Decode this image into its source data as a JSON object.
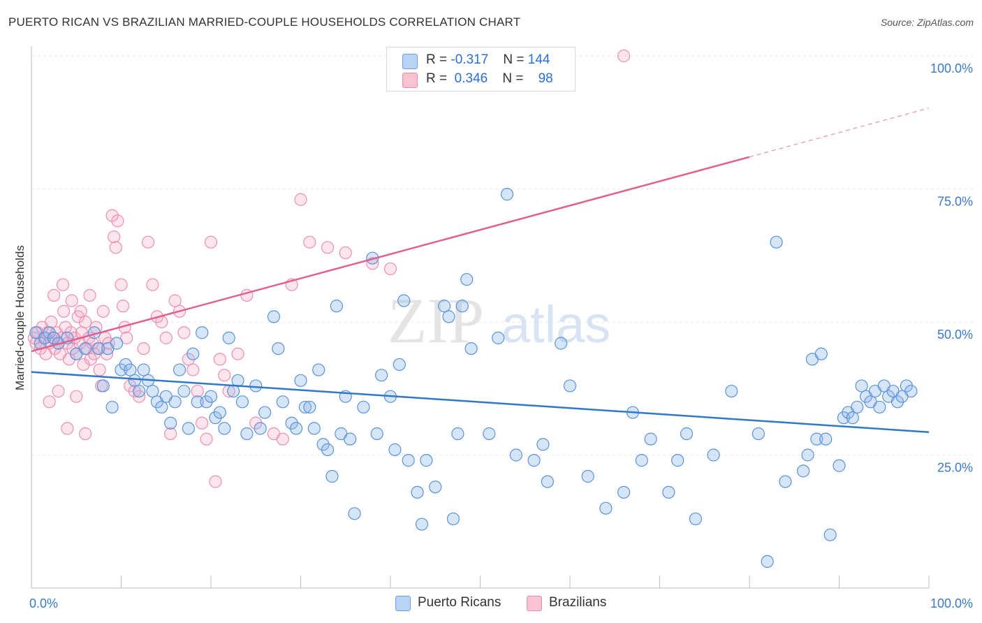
{
  "header": {
    "title": "PUERTO RICAN VS BRAZILIAN MARRIED-COUPLE HOUSEHOLDS CORRELATION CHART",
    "source": "Source: ZipAtlas.com"
  },
  "watermark": {
    "zip": "ZIP",
    "atlas": "atlas"
  },
  "legend": {
    "r_label": "R =",
    "n_label": "N =",
    "series": [
      {
        "name": "Puerto Ricans",
        "r": "-0.317",
        "n": "144",
        "fill": "#b9d3f4",
        "stroke": "#6a9ee0"
      },
      {
        "name": "Brazilians",
        "r": "0.346",
        "n": "98",
        "fill": "#f9c3d4",
        "stroke": "#e88aa8"
      }
    ]
  },
  "colors": {
    "blue_point_fill": "rgba(140,180,235,0.35)",
    "blue_point_stroke": "#5b93da",
    "pink_point_fill": "rgba(245,170,195,0.30)",
    "pink_point_stroke": "#ee8fb0",
    "blue_line": "#2f78cc",
    "pink_line": "#e0608e",
    "tick_label": "#3a78c9",
    "grid": "#e6e6e6"
  },
  "chart_data": {
    "type": "scatter",
    "title": "PUERTO RICAN VS BRAZILIAN MARRIED-COUPLE HOUSEHOLDS CORRELATION CHART",
    "xlabel": "",
    "ylabel": "Married-couple Households",
    "xlim": [
      0,
      100
    ],
    "ylim": [
      0,
      100
    ],
    "x_tick_labels": [
      "0.0%",
      "100.0%"
    ],
    "y_tick_labels": [
      {
        "value": 100,
        "label": "100.0%"
      },
      {
        "value": 75,
        "label": "75.0%"
      },
      {
        "value": 50,
        "label": "50.0%"
      },
      {
        "value": 25,
        "label": "25.0%"
      }
    ],
    "grid": true,
    "series": [
      {
        "name": "Puerto Ricans",
        "trend": {
          "x0": 0,
          "y0": 40.6,
          "x1": 100,
          "y1": 29.3
        },
        "points": [
          [
            0.5,
            48
          ],
          [
            1,
            46
          ],
          [
            1.5,
            47
          ],
          [
            2,
            48
          ],
          [
            2.5,
            47
          ],
          [
            3,
            46
          ],
          [
            4,
            47
          ],
          [
            5,
            44
          ],
          [
            6,
            45
          ],
          [
            7,
            48
          ],
          [
            7.5,
            45
          ],
          [
            8,
            38
          ],
          [
            8.5,
            45
          ],
          [
            9,
            34
          ],
          [
            9.5,
            46
          ],
          [
            10,
            41
          ],
          [
            10.5,
            42
          ],
          [
            11,
            41
          ],
          [
            11.5,
            39
          ],
          [
            12,
            37
          ],
          [
            12.5,
            41
          ],
          [
            13,
            39
          ],
          [
            13.5,
            37
          ],
          [
            14,
            35
          ],
          [
            14.5,
            34
          ],
          [
            15,
            36
          ],
          [
            15.5,
            31
          ],
          [
            16,
            35
          ],
          [
            16.5,
            41
          ],
          [
            17,
            37
          ],
          [
            17.5,
            30
          ],
          [
            18,
            44
          ],
          [
            18.5,
            35
          ],
          [
            19,
            48
          ],
          [
            19.5,
            35
          ],
          [
            20,
            36
          ],
          [
            20.5,
            32
          ],
          [
            21,
            33
          ],
          [
            21.5,
            30
          ],
          [
            22,
            47
          ],
          [
            22.5,
            37
          ],
          [
            23,
            39
          ],
          [
            23.5,
            35
          ],
          [
            24,
            29
          ],
          [
            25,
            38
          ],
          [
            25.5,
            30
          ],
          [
            26,
            33
          ],
          [
            27,
            51
          ],
          [
            27.5,
            45
          ],
          [
            28,
            35
          ],
          [
            29,
            31
          ],
          [
            29.5,
            30
          ],
          [
            30,
            39
          ],
          [
            30.5,
            34
          ],
          [
            31,
            34
          ],
          [
            31.5,
            30
          ],
          [
            32,
            41
          ],
          [
            32.5,
            27
          ],
          [
            33,
            26
          ],
          [
            33.5,
            21
          ],
          [
            34,
            53
          ],
          [
            34.5,
            29
          ],
          [
            35,
            36
          ],
          [
            35.5,
            28
          ],
          [
            36,
            14
          ],
          [
            37,
            34
          ],
          [
            38,
            62
          ],
          [
            38.5,
            29
          ],
          [
            39,
            40
          ],
          [
            40,
            36
          ],
          [
            40.5,
            26
          ],
          [
            41,
            42
          ],
          [
            41.5,
            54
          ],
          [
            42,
            24
          ],
          [
            43,
            18
          ],
          [
            43.5,
            12
          ],
          [
            44,
            24
          ],
          [
            45,
            19
          ],
          [
            46,
            53
          ],
          [
            46.5,
            51
          ],
          [
            47,
            13
          ],
          [
            47.5,
            29
          ],
          [
            48,
            53
          ],
          [
            48.5,
            58
          ],
          [
            49,
            45
          ],
          [
            51,
            29
          ],
          [
            52,
            47
          ],
          [
            53,
            74
          ],
          [
            54,
            25
          ],
          [
            56,
            24
          ],
          [
            57,
            27
          ],
          [
            57.5,
            20
          ],
          [
            59,
            46
          ],
          [
            60,
            38
          ],
          [
            62,
            21
          ],
          [
            64,
            15
          ],
          [
            66,
            18
          ],
          [
            67,
            33
          ],
          [
            68,
            24
          ],
          [
            69,
            28
          ],
          [
            71,
            18
          ],
          [
            72,
            24
          ],
          [
            73,
            29
          ],
          [
            74,
            13
          ],
          [
            76,
            25
          ],
          [
            78,
            37
          ],
          [
            81,
            29
          ],
          [
            82,
            5
          ],
          [
            83,
            65
          ],
          [
            84,
            20
          ],
          [
            86,
            22
          ],
          [
            86.5,
            25
          ],
          [
            87,
            43
          ],
          [
            87.5,
            28
          ],
          [
            88,
            44
          ],
          [
            88.5,
            28
          ],
          [
            89,
            10
          ],
          [
            90,
            23
          ],
          [
            90.5,
            32
          ],
          [
            91,
            33
          ],
          [
            91.5,
            32
          ],
          [
            92,
            34
          ],
          [
            92.5,
            38
          ],
          [
            93,
            36
          ],
          [
            93.5,
            35
          ],
          [
            94,
            37
          ],
          [
            94.5,
            34
          ],
          [
            95,
            38
          ],
          [
            95.5,
            36
          ],
          [
            96,
            37
          ],
          [
            96.5,
            35
          ],
          [
            97,
            36
          ],
          [
            97.5,
            38
          ],
          [
            98,
            37
          ]
        ]
      },
      {
        "name": "Brazilians",
        "trend": {
          "x0": 0,
          "y0": 44.5,
          "x1": 80,
          "y1": 81.0,
          "dash_to": {
            "x": 100,
            "y": 90.2
          }
        },
        "points": [
          [
            0.3,
            47
          ],
          [
            0.5,
            46
          ],
          [
            0.7,
            48
          ],
          [
            1,
            45
          ],
          [
            1.2,
            49
          ],
          [
            1.4,
            47
          ],
          [
            1.6,
            44
          ],
          [
            1.8,
            48
          ],
          [
            2,
            46
          ],
          [
            2.2,
            50
          ],
          [
            2.4,
            47
          ],
          [
            2.6,
            45
          ],
          [
            2.8,
            48
          ],
          [
            3,
            46
          ],
          [
            3.2,
            44
          ],
          [
            3.4,
            47
          ],
          [
            3.6,
            52
          ],
          [
            3.8,
            49
          ],
          [
            4,
            46
          ],
          [
            4.2,
            43
          ],
          [
            4.4,
            48
          ],
          [
            4.6,
            45
          ],
          [
            4.8,
            47
          ],
          [
            5,
            44
          ],
          [
            5.2,
            51
          ],
          [
            5.4,
            46
          ],
          [
            5.6,
            48
          ],
          [
            5.8,
            42
          ],
          [
            6,
            50
          ],
          [
            6.2,
            45
          ],
          [
            6.4,
            47
          ],
          [
            6.6,
            43
          ],
          [
            6.8,
            46
          ],
          [
            7,
            44
          ],
          [
            7.2,
            49
          ],
          [
            7.4,
            45
          ],
          [
            7.6,
            41
          ],
          [
            7.8,
            38
          ],
          [
            8,
            52
          ],
          [
            8.2,
            47
          ],
          [
            8.4,
            44
          ],
          [
            8.6,
            46
          ],
          [
            9,
            70
          ],
          [
            9.2,
            66
          ],
          [
            9.4,
            64
          ],
          [
            9.6,
            69
          ],
          [
            10,
            57
          ],
          [
            10.2,
            53
          ],
          [
            10.4,
            49
          ],
          [
            10.6,
            47
          ],
          [
            11,
            38
          ],
          [
            11.5,
            37
          ],
          [
            12,
            36
          ],
          [
            12.5,
            45
          ],
          [
            13,
            65
          ],
          [
            13.5,
            57
          ],
          [
            14,
            51
          ],
          [
            14.5,
            50
          ],
          [
            15,
            47
          ],
          [
            15.5,
            29
          ],
          [
            16,
            54
          ],
          [
            16.5,
            52
          ],
          [
            17,
            48
          ],
          [
            17.5,
            43
          ],
          [
            18,
            41
          ],
          [
            18.5,
            37
          ],
          [
            19,
            31
          ],
          [
            19.5,
            28
          ],
          [
            20,
            65
          ],
          [
            20.5,
            20
          ],
          [
            21,
            43
          ],
          [
            21.5,
            40
          ],
          [
            22,
            37
          ],
          [
            23,
            44
          ],
          [
            24,
            55
          ],
          [
            25,
            31
          ],
          [
            27,
            29
          ],
          [
            28,
            28
          ],
          [
            29,
            57
          ],
          [
            30,
            73
          ],
          [
            31,
            65
          ],
          [
            33,
            64
          ],
          [
            35,
            63
          ],
          [
            38,
            61
          ],
          [
            40,
            60
          ],
          [
            66,
            100
          ],
          [
            2,
            35
          ],
          [
            3,
            37
          ],
          [
            4,
            30
          ],
          [
            5,
            36
          ],
          [
            6,
            29
          ],
          [
            2.5,
            55
          ],
          [
            3.5,
            57
          ],
          [
            4.5,
            54
          ],
          [
            5.5,
            52
          ],
          [
            6.5,
            55
          ]
        ]
      }
    ]
  }
}
